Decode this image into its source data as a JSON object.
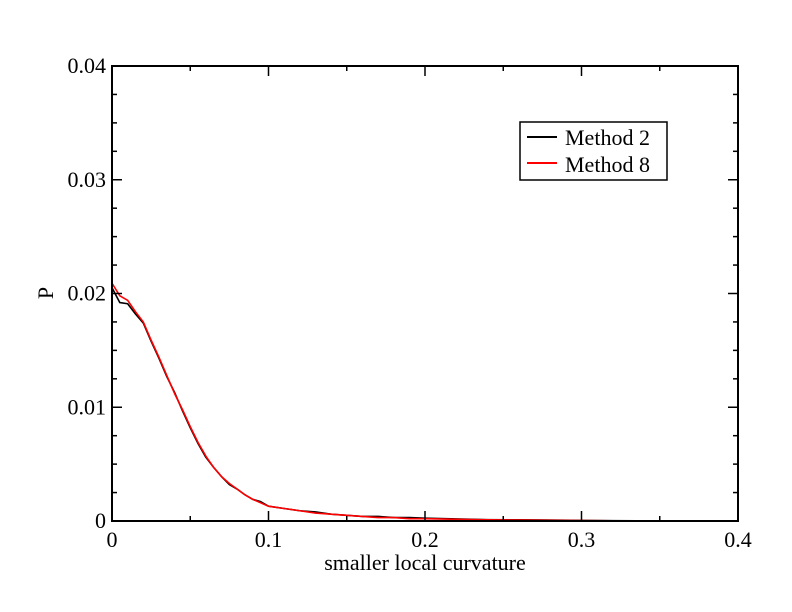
{
  "chart_data": {
    "type": "line",
    "title": "",
    "xlabel": "smaller local curvature",
    "ylabel": "P",
    "xlim": [
      0,
      0.4
    ],
    "ylim": [
      0,
      0.04
    ],
    "x_ticks": [
      0,
      0.1,
      0.2,
      0.3,
      0.4
    ],
    "x_tick_labels": [
      "0",
      "0.1",
      "0.2",
      "0.3",
      "0.4"
    ],
    "y_ticks": [
      0,
      0.01,
      0.02,
      0.03,
      0.04
    ],
    "y_tick_labels": [
      "0",
      "0.01",
      "0.02",
      "0.03",
      "0.04"
    ],
    "grid": false,
    "legend_position": "top-right",
    "x": [
      0,
      0.005,
      0.01,
      0.015,
      0.02,
      0.025,
      0.03,
      0.035,
      0.04,
      0.045,
      0.05,
      0.055,
      0.06,
      0.065,
      0.07,
      0.075,
      0.08,
      0.085,
      0.09,
      0.095,
      0.1,
      0.11,
      0.12,
      0.13,
      0.14,
      0.15,
      0.16,
      0.17,
      0.18,
      0.19,
      0.2,
      0.22,
      0.24,
      0.26,
      0.28,
      0.3,
      0.32,
      0.34
    ],
    "series": [
      {
        "name": "Method 2",
        "color": "#000000",
        "values": [
          0.0205,
          0.0192,
          0.0191,
          0.0182,
          0.0174,
          0.0158,
          0.0143,
          0.0127,
          0.0113,
          0.0097,
          0.0082,
          0.0068,
          0.0056,
          0.0047,
          0.0039,
          0.0032,
          0.0028,
          0.0023,
          0.0019,
          0.0017,
          0.0013,
          0.0011,
          0.0009,
          0.0008,
          0.0006,
          0.0005,
          0.0004,
          0.0004,
          0.0003,
          0.0003,
          0.00025,
          0.00018,
          0.00012,
          0.0001,
          8e-05,
          5e-05,
          3e-05,
          1e-05
        ]
      },
      {
        "name": "Method 8",
        "color": "#ff0000",
        "values": [
          0.0209,
          0.0198,
          0.0194,
          0.0184,
          0.0175,
          0.0159,
          0.0144,
          0.0128,
          0.0112,
          0.0098,
          0.0083,
          0.0069,
          0.0057,
          0.0047,
          0.0039,
          0.0033,
          0.0028,
          0.0023,
          0.0019,
          0.0016,
          0.0013,
          0.0011,
          0.0009,
          0.0007,
          0.0006,
          0.0005,
          0.0004,
          0.0003,
          0.0003,
          0.0002,
          0.0002,
          0.00015,
          0.0001,
          8e-05,
          6e-05,
          4e-05,
          2e-05,
          1e-05
        ]
      }
    ]
  }
}
